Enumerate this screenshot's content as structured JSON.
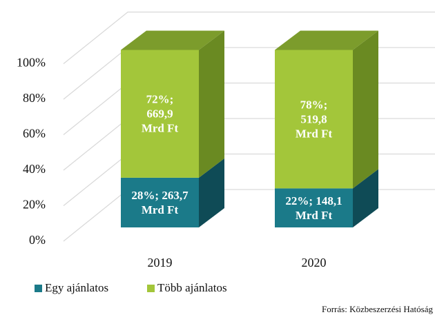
{
  "chart_data": {
    "type": "bar3d_stacked",
    "categories": [
      "2019",
      "2020"
    ],
    "series": [
      {
        "name": "Egy ajánlatos",
        "color": "#1b7a89",
        "side_color": "#0f4b56",
        "values": [
          28,
          22
        ],
        "value_labels": [
          "28%; 263,7\nMrd Ft",
          "22%; 148,1\nMrd Ft"
        ]
      },
      {
        "name": "Több ajánlatos",
        "color": "#a3c63a",
        "side_color": "#6a8a22",
        "top_color": "#7c9c2c",
        "values": [
          72,
          78
        ],
        "value_labels": [
          "72%;\n669,9\nMrd Ft",
          "78%;\n519,8\nMrd Ft"
        ]
      }
    ],
    "ylim": [
      0,
      100
    ],
    "yticks": [
      {
        "value": 0,
        "label": "0%"
      },
      {
        "value": 20,
        "label": "20%"
      },
      {
        "value": 40,
        "label": "40%"
      },
      {
        "value": 60,
        "label": "60%"
      },
      {
        "value": 80,
        "label": "80%"
      },
      {
        "value": 100,
        "label": "100%"
      }
    ],
    "grid": true,
    "legend": "bottom",
    "source": "Forrás: Közbeszerzési Hatóság"
  }
}
